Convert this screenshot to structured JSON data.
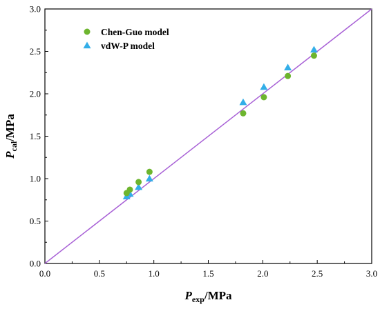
{
  "chart_data": {
    "type": "scatter",
    "xlabel": {
      "main": "P",
      "sub": "exp",
      "unit": "/MPa"
    },
    "ylabel": {
      "main": "P",
      "sub": "cal",
      "unit": "/MPa"
    },
    "xlim": [
      0,
      3.0
    ],
    "ylim": [
      0,
      3.0
    ],
    "xticks": [
      "0.0",
      "0.5",
      "1.0",
      "1.5",
      "2.0",
      "2.5",
      "3.0"
    ],
    "yticks": [
      "0.0",
      "0.5",
      "1.0",
      "1.5",
      "2.0",
      "2.5",
      "3.0"
    ],
    "grid": false,
    "legend_position": "top-left",
    "reference_line": {
      "from": [
        0,
        0
      ],
      "to": [
        3.0,
        3.0
      ],
      "color": "#a861d6"
    },
    "series": [
      {
        "name": "Chen-Guo model",
        "marker": "circle",
        "color": "#6db52e",
        "x": [
          0.75,
          0.78,
          0.86,
          0.96,
          1.82,
          2.01,
          2.23,
          2.47
        ],
        "y": [
          0.83,
          0.87,
          0.96,
          1.08,
          1.77,
          1.96,
          2.21,
          2.45
        ]
      },
      {
        "name": "vdW-P model",
        "marker": "triangle",
        "color": "#33aee8",
        "x": [
          0.75,
          0.78,
          0.86,
          0.96,
          1.82,
          2.01,
          2.23,
          2.47
        ],
        "y": [
          0.79,
          0.82,
          0.9,
          1.0,
          1.9,
          2.08,
          2.31,
          2.52
        ]
      }
    ]
  }
}
